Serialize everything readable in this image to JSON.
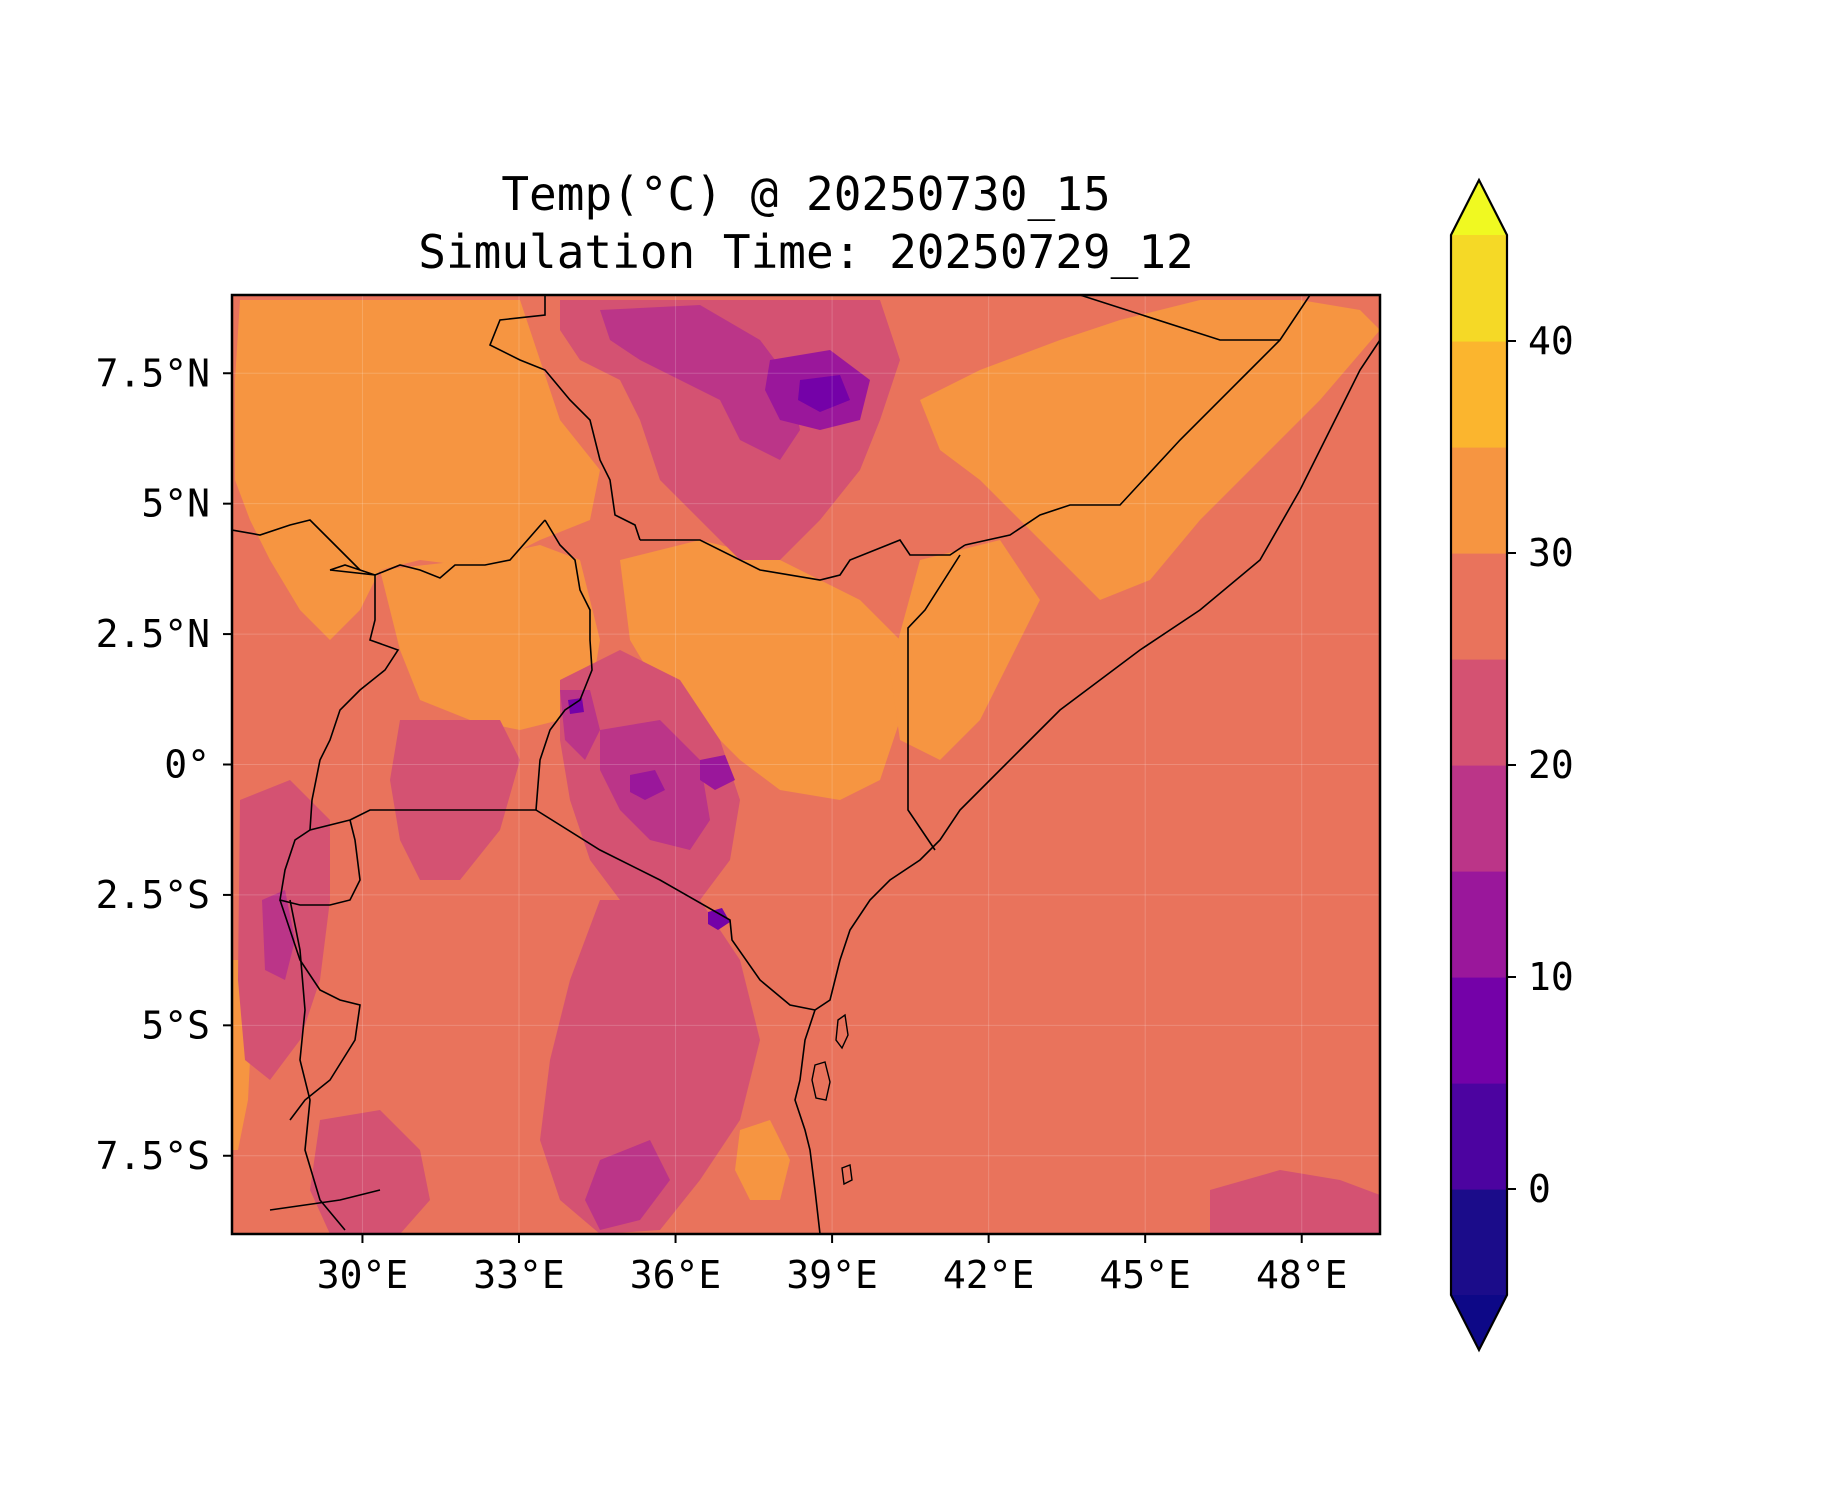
{
  "chart_data": {
    "type": "heatmap",
    "title": "Temp(°C) @ 20250730_15",
    "subtitle": "Simulation Time: 20250729_12",
    "xlabel": "",
    "ylabel": "",
    "xlim": [
      27.5,
      49.5
    ],
    "ylim": [
      -9.0,
      9.0
    ],
    "x_ticks": [
      {
        "value": 30,
        "label": "30°E"
      },
      {
        "value": 33,
        "label": "33°E"
      },
      {
        "value": 36,
        "label": "36°E"
      },
      {
        "value": 39,
        "label": "39°E"
      },
      {
        "value": 42,
        "label": "42°E"
      },
      {
        "value": 45,
        "label": "45°E"
      },
      {
        "value": 48,
        "label": "48°E"
      }
    ],
    "y_ticks": [
      {
        "value": 7.5,
        "label": "7.5°N"
      },
      {
        "value": 5,
        "label": "5°N"
      },
      {
        "value": 2.5,
        "label": "2.5°N"
      },
      {
        "value": 0,
        "label": "0°"
      },
      {
        "value": -2.5,
        "label": "2.5°S"
      },
      {
        "value": -5,
        "label": "5°S"
      },
      {
        "value": -7.5,
        "label": "7.5°S"
      }
    ],
    "grid": true,
    "colorbar": {
      "placement": "right",
      "extend": "both",
      "levels": [
        -5,
        0,
        5,
        10,
        15,
        20,
        25,
        30,
        35,
        40,
        45
      ],
      "colors": [
        "#1b0c8a",
        "#4c03a0",
        "#7401a8",
        "#9a179b",
        "#bb3588",
        "#d45272",
        "#e9735c",
        "#f69541",
        "#fbb52e",
        "#f5d926"
      ],
      "under_color": "#0d0887",
      "over_color": "#f0f921",
      "ticks": [
        {
          "value": 0,
          "label": "0"
        },
        {
          "value": 10,
          "label": "10"
        },
        {
          "value": 20,
          "label": "20"
        },
        {
          "value": 30,
          "label": "30"
        },
        {
          "value": 40,
          "label": "40"
        }
      ]
    },
    "dominant_range_sea": [
      25,
      30
    ],
    "cool_highlands": [
      {
        "lon": 38.8,
        "lat": 6.6,
        "value": 8
      },
      {
        "lon": 36.2,
        "lat": 7.5,
        "value": 14
      },
      {
        "lon": 37.2,
        "lat": -0.1,
        "value": 10
      },
      {
        "lon": 35.8,
        "lat": -0.5,
        "value": 14
      },
      {
        "lon": 37.3,
        "lat": -3.1,
        "value": 8
      },
      {
        "lon": 34.6,
        "lat": 1.1,
        "value": 13
      },
      {
        "lon": 35.9,
        "lat": -8.3,
        "value": 16
      },
      {
        "lon": 29.6,
        "lat": -3.2,
        "value": 18
      }
    ],
    "warm_regions": [
      {
        "name": "",
        "lon": 31.5,
        "lat": 6.5,
        "value_range": [
          30,
          35
        ]
      },
      {
        "name": "",
        "lon": 40.0,
        "lat": 2.5,
        "value_range": [
          30,
          35
        ]
      },
      {
        "name": "",
        "lon": 46.0,
        "lat": 6.0,
        "value_range": [
          30,
          35
        ]
      }
    ]
  }
}
